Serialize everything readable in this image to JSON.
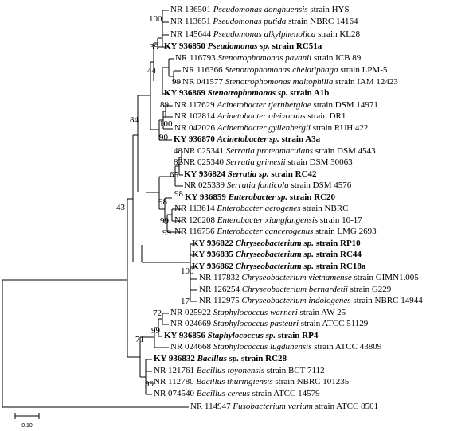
{
  "figure": {
    "scale_bar_label": "0.10",
    "taxa": [
      {
        "acc": "NR 136501",
        "species": "Pseudomonas donghuensis",
        "rest": "strain HYS",
        "bold": false
      },
      {
        "acc": "NR 113651",
        "species": "Pseudomonas putida",
        "rest": "strain NBRC 14164",
        "bold": false
      },
      {
        "acc": "NR 145644",
        "species": "Pseudomonas alkylphenolica",
        "rest": "strain KL28",
        "bold": false
      },
      {
        "acc": "KY 936850",
        "species": "Pseudomonas sp.",
        "rest": "strain RC51a",
        "bold": true
      },
      {
        "acc": "NR 116793",
        "species": "Stenotrophomonas pavanii",
        "rest": "strain ICB 89",
        "bold": false
      },
      {
        "acc": "NR 116366",
        "species": "Stenotrophomonas chelatiphaga",
        "rest": "strain LPM-5",
        "bold": false
      },
      {
        "acc": "NR 041577",
        "species": "Stenotrophomonas maltophilia",
        "rest": "strain IAM 12423",
        "bold": false
      },
      {
        "acc": "KY 936869",
        "species": "Stenotrophomonas sp.",
        "rest": "strain A1b",
        "bold": true
      },
      {
        "acc": "NR 117629",
        "species": "Acinetobacter tjernbergiae",
        "rest": "strain DSM 14971",
        "bold": false
      },
      {
        "acc": "NR 102814",
        "species": "Acinetobacter oleivorans",
        "rest": "strain DR1",
        "bold": false
      },
      {
        "acc": "NR 042026",
        "species": "Acinetobacter gyllenbergii",
        "rest": "strain RUH 422",
        "bold": false
      },
      {
        "acc": "KY 936870",
        "species": "Acinetobacter sp.",
        "rest": "strain A3a",
        "bold": true
      },
      {
        "acc": "NR 025341",
        "species": "Serratia proteamaculans",
        "rest": "strain DSM 4543",
        "bold": false
      },
      {
        "acc": "NR 025340",
        "species": "Serratia grimesii",
        "rest": "strain DSM 30063",
        "bold": false
      },
      {
        "acc": "KY 936824",
        "species": "Serratia sp.",
        "rest": "strain RC42",
        "bold": true
      },
      {
        "acc": "NR 025339",
        "species": "Serratia fonticola",
        "rest": "strain DSM 4576",
        "bold": false
      },
      {
        "acc": "KY 936859",
        "species": "Enterobacter sp.",
        "rest": "strain RC20",
        "bold": true
      },
      {
        "acc": "NR 113614",
        "species": "Enterobacter aerogenes",
        "rest": "strain NBRC",
        "bold": false
      },
      {
        "acc": "NR 126208",
        "species": "Enterobacter xiangfangensis",
        "rest": "strain 10-17",
        "bold": false
      },
      {
        "acc": "NR 116756",
        "species": "Enterobacter cancerogenus",
        "rest": "strain LMG 2693",
        "bold": false
      },
      {
        "acc": "KY 936822",
        "species": "Chryseobacterium sp.",
        "rest": "strain RP10",
        "bold": true
      },
      {
        "acc": "KY 936835",
        "species": "Chryseobacterium sp.",
        "rest": "strain RC44",
        "bold": true
      },
      {
        "acc": "KY 936862",
        "species": "Chryseobacterium sp.",
        "rest": "strain RC18a",
        "bold": true
      },
      {
        "acc": "NR 117832",
        "species": "Chryseobacterium vietnamense",
        "rest": "strain GIMN1.005",
        "bold": false
      },
      {
        "acc": "NR 126254",
        "species": "Chryseobacterium bernardetii",
        "rest": "strain G229",
        "bold": false
      },
      {
        "acc": "NR 112975",
        "species": "Chryseobacterium indologenes",
        "rest": "strain NBRC 14944",
        "bold": false
      },
      {
        "acc": "NR 025922",
        "species": "Staphylococcus warneri",
        "rest": "strain AW 25",
        "bold": false
      },
      {
        "acc": "NR 024669",
        "species": "Staphylococcus pasteuri",
        "rest": "strain ATCC 51129",
        "bold": false
      },
      {
        "acc": "KY 936856",
        "species": "Staphylococcus sp.",
        "rest": "strain RP4",
        "bold": true
      },
      {
        "acc": "NR 024668",
        "species": "Staphylococcus lugdunensis",
        "rest": "strain ATCC 43809",
        "bold": false
      },
      {
        "acc": "KY 936832",
        "species": "Bacillus sp.",
        "rest": "strain RC28",
        "bold": true
      },
      {
        "acc": "NR 121761",
        "species": "Bacillus toyonensis",
        "rest": "strain BCT-7112",
        "bold": false
      },
      {
        "acc": "NR 112780",
        "species": "Bacillus thuringiensis",
        "rest": "strain NBRC 101235",
        "bold": false
      },
      {
        "acc": "NR 074540",
        "species": "Bacillus cereus",
        "rest": "strain ATCC 14579",
        "bold": false
      },
      {
        "acc": "NR 114947",
        "species": "Fusobacterium varium",
        "rest": "strain ATCC 8501",
        "bold": false
      }
    ],
    "bootstrap": [
      "100",
      "39",
      "99",
      "44",
      "89",
      "100",
      "90",
      "84",
      "48",
      "82",
      "65",
      "98",
      "98",
      "99",
      "99",
      "43",
      "100",
      "17",
      "72",
      "99",
      "71",
      "99"
    ]
  }
}
